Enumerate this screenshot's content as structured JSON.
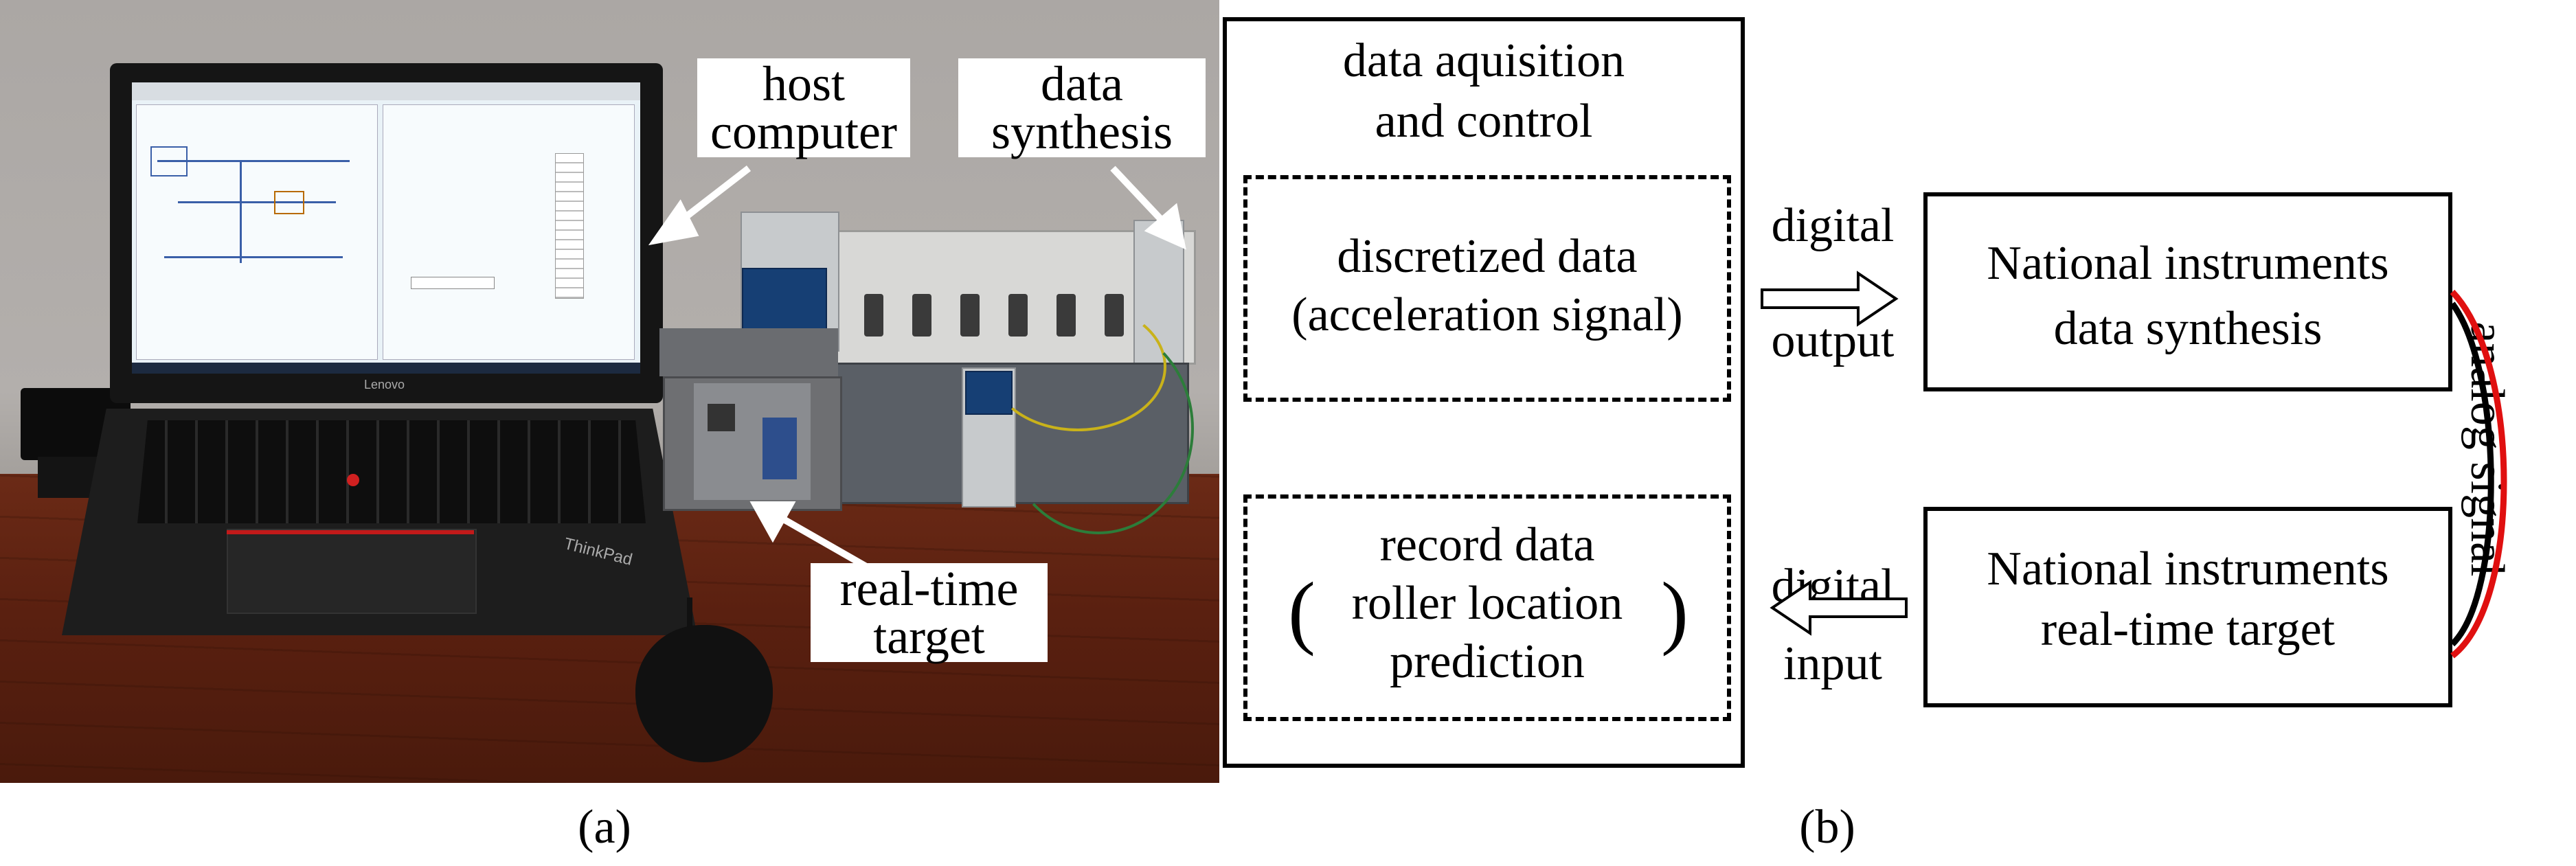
{
  "panel_a": {
    "caption": "(a)",
    "callouts": {
      "host_computer": [
        "host",
        "computer"
      ],
      "data_synthesis": [
        "data",
        "synthesis"
      ],
      "real_time_target": [
        "real-time",
        "target"
      ]
    },
    "photo_text": {
      "laptop_brand": "Lenovo",
      "keyboard_brand": "ThinkPad"
    }
  },
  "panel_b": {
    "caption": "(b)",
    "outer_title": [
      "data aquisition",
      "and control"
    ],
    "discretized_box": [
      "discretized data",
      "(acceleration signal)"
    ],
    "record_box": [
      "record data",
      "roller location",
      "prediction"
    ],
    "record_box_parens": [
      "(",
      ")"
    ],
    "digital_output": [
      "digital",
      "output"
    ],
    "digital_input": [
      "digital",
      "input"
    ],
    "ni_synthesis": [
      "National instruments",
      "data synthesis"
    ],
    "ni_realtime": [
      "National instruments",
      "real-time target"
    ],
    "analog_signal": "analog signal",
    "colors": {
      "analog_wire_outer": "#e01010",
      "analog_wire_inner": "#000000",
      "arrow_fill": "#ffffff"
    }
  }
}
